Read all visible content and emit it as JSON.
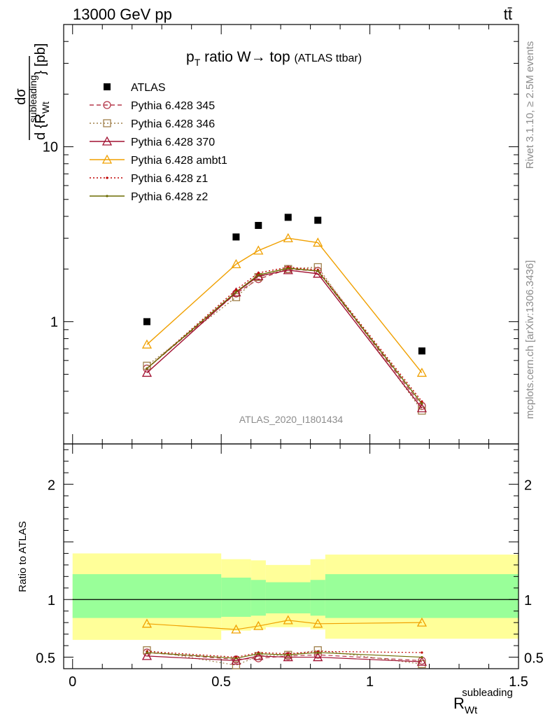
{
  "header": {
    "left": "13000 GeV pp",
    "right": "tt̄"
  },
  "side_labels": {
    "top": "Rivet 3.1.10, ≥ 2.5M events",
    "bottom": "mcplots.cern.ch [arXiv:1306.3436]"
  },
  "watermark": "ATLAS_2020_I1801434",
  "chart_data": [
    {
      "type": "scatter",
      "panel": "main",
      "title_main": "p",
      "title_sub": "T",
      "title_rest": " ratio W→ top",
      "title_small": "(ATLAS ttbar)",
      "ylabel_top": "dσ",
      "ylabel_bottom": "d {R",
      "ylabel_bottom_sub": "Wt",
      "ylabel_bottom_sup": "subleading",
      "ylabel_unit": "} [pb]",
      "yscale": "log",
      "ylim": [
        0.2,
        50
      ],
      "xlim": [
        -0.03,
        1.5
      ],
      "ytick_labels": [
        "1",
        "10"
      ],
      "ytick_values": [
        1,
        10
      ],
      "legend_placement": "top-left",
      "x": [
        0.25,
        0.55,
        0.625,
        0.725,
        0.825,
        1.175
      ],
      "series": [
        {
          "name": "ATLAS",
          "color": "#000000",
          "marker": "square-filled",
          "line": "none",
          "values": [
            1.0,
            3.05,
            3.55,
            3.95,
            3.8,
            0.68
          ]
        },
        {
          "name": "Pythia 6.428 345",
          "color": "#b5394b",
          "marker": "circle",
          "line": "dashed",
          "values": [
            0.54,
            1.45,
            1.75,
            2.0,
            1.95,
            0.33
          ]
        },
        {
          "name": "Pythia 6.428 346",
          "color": "#a0804b",
          "marker": "square",
          "line": "dotted",
          "values": [
            0.56,
            1.38,
            1.8,
            2.0,
            2.05,
            0.31
          ]
        },
        {
          "name": "Pythia 6.428 370",
          "color": "#a01030",
          "marker": "triangle",
          "line": "solid",
          "values": [
            0.51,
            1.47,
            1.82,
            1.97,
            1.88,
            0.32
          ]
        },
        {
          "name": "Pythia 6.428 ambt1",
          "color": "#f0a000",
          "marker": "triangle",
          "line": "solid",
          "values": [
            0.74,
            2.13,
            2.55,
            3.0,
            2.83,
            0.51
          ]
        },
        {
          "name": "Pythia 6.428 z1",
          "color": "#c00000",
          "marker": "dot",
          "line": "dotted",
          "values": [
            0.54,
            1.52,
            1.9,
            2.05,
            1.98,
            0.35
          ]
        },
        {
          "name": "Pythia 6.428 z2",
          "color": "#6b6b00",
          "marker": "dot",
          "line": "solid",
          "values": [
            0.54,
            1.48,
            1.85,
            2.02,
            1.95,
            0.34
          ]
        }
      ]
    },
    {
      "type": "scatter",
      "panel": "ratio",
      "ylabel": "Ratio to ATLAS",
      "xlabel_main": "R",
      "xlabel_sub": "Wt",
      "xlabel_sup": "subleading",
      "ylim": [
        0.4,
        2.35
      ],
      "xlim": [
        -0.03,
        1.5
      ],
      "ytick_labels": [
        "0.5",
        "1",
        "2"
      ],
      "ytick_values": [
        0.5,
        1,
        2
      ],
      "xtick_labels": [
        "0",
        "0.5",
        "1",
        "1.5"
      ],
      "xtick_values": [
        0,
        0.5,
        1,
        1.5
      ],
      "bands": [
        {
          "x0": 0.0,
          "x1": 0.5,
          "yellow": [
            0.65,
            1.4
          ],
          "green": [
            0.84,
            1.22
          ]
        },
        {
          "x0": 0.5,
          "x1": 0.6,
          "yellow": [
            0.73,
            1.35
          ],
          "green": [
            0.85,
            1.19
          ]
        },
        {
          "x0": 0.6,
          "x1": 0.65,
          "yellow": [
            0.74,
            1.34
          ],
          "green": [
            0.86,
            1.17
          ]
        },
        {
          "x0": 0.65,
          "x1": 0.8,
          "yellow": [
            0.76,
            1.3
          ],
          "green": [
            0.88,
            1.15
          ]
        },
        {
          "x0": 0.8,
          "x1": 0.85,
          "yellow": [
            0.74,
            1.35
          ],
          "green": [
            0.86,
            1.17
          ]
        },
        {
          "x0": 0.85,
          "x1": 1.5,
          "yellow": [
            0.66,
            1.39
          ],
          "green": [
            0.84,
            1.22
          ]
        }
      ],
      "x": [
        0.25,
        0.55,
        0.625,
        0.725,
        0.825,
        1.175
      ],
      "series": [
        {
          "name": "Pythia 6.428 345",
          "color": "#b5394b",
          "marker": "circle",
          "line": "dashed",
          "values": [
            0.54,
            0.48,
            0.49,
            0.51,
            0.52,
            0.47
          ]
        },
        {
          "name": "Pythia 6.428 346",
          "color": "#a0804b",
          "marker": "square",
          "line": "dotted",
          "values": [
            0.56,
            0.43,
            0.51,
            0.52,
            0.56,
            0.44
          ]
        },
        {
          "name": "Pythia 6.428 370",
          "color": "#a01030",
          "marker": "triangle",
          "line": "solid",
          "values": [
            0.51,
            0.47,
            0.51,
            0.5,
            0.5,
            0.46
          ]
        },
        {
          "name": "Pythia 6.428 ambt1",
          "color": "#f0a000",
          "marker": "triangle",
          "line": "solid",
          "values": [
            0.79,
            0.74,
            0.77,
            0.82,
            0.79,
            0.8
          ]
        },
        {
          "name": "Pythia 6.428 z1",
          "color": "#c00000",
          "marker": "dot",
          "line": "dotted",
          "values": [
            0.55,
            0.5,
            0.54,
            0.53,
            0.55,
            0.54
          ]
        },
        {
          "name": "Pythia 6.428 z2",
          "color": "#6b6b00",
          "marker": "dot",
          "line": "solid",
          "values": [
            0.54,
            0.49,
            0.53,
            0.52,
            0.54,
            0.5
          ]
        }
      ]
    }
  ]
}
